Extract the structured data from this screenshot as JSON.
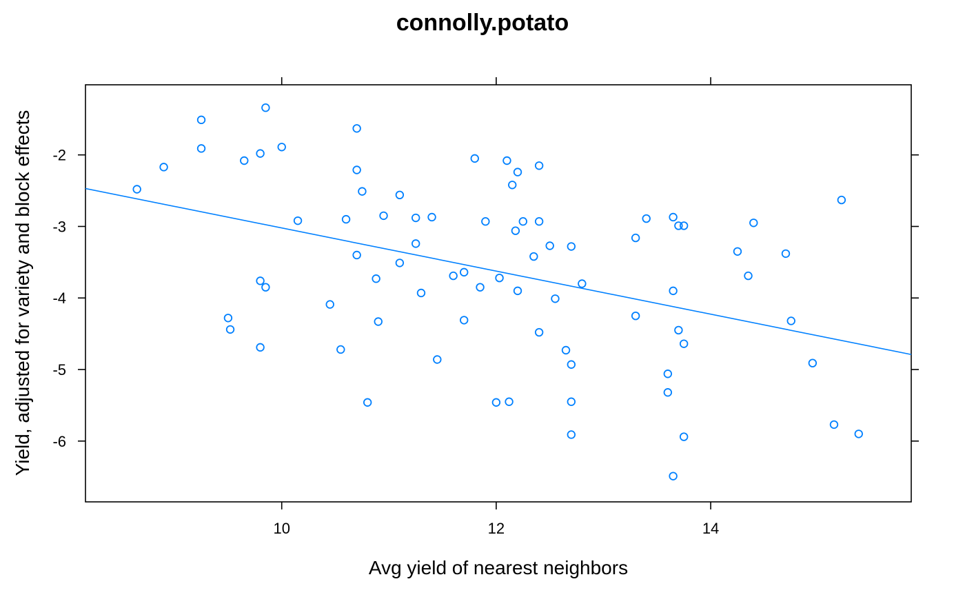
{
  "chart_data": {
    "type": "scatter",
    "title": "connolly.potato",
    "xlabel": "Avg yield of nearest neighbors",
    "ylabel": "Yield, adjusted for variety and block effects",
    "xlim": [
      8.17,
      15.87
    ],
    "ylim": [
      -6.85,
      -1.02
    ],
    "xticks": [
      10,
      12,
      14
    ],
    "yticks": [
      -6,
      -5,
      -4,
      -3,
      -2
    ],
    "grid": false,
    "legend": "none",
    "colors": {
      "points": "#0080ff",
      "fit_line": "#0080ff",
      "frame": "#000000"
    },
    "fit_line": {
      "x": [
        8.17,
        15.87
      ],
      "y": [
        -2.47,
        -4.79
      ]
    },
    "x": [
      8.65,
      8.9,
      9.25,
      9.25,
      9.5,
      9.52,
      9.65,
      9.8,
      9.8,
      9.8,
      9.85,
      9.85,
      10.0,
      10.15,
      10.45,
      10.55,
      10.6,
      10.7,
      10.7,
      10.7,
      10.75,
      10.8,
      10.88,
      10.9,
      10.95,
      11.1,
      11.1,
      11.25,
      11.25,
      11.3,
      11.4,
      11.45,
      11.6,
      11.7,
      11.7,
      11.8,
      11.85,
      11.9,
      12.0,
      12.03,
      12.1,
      12.12,
      12.15,
      12.18,
      12.2,
      12.2,
      12.25,
      12.35,
      12.4,
      12.4,
      12.4,
      12.5,
      12.55,
      12.65,
      12.7,
      12.7,
      12.7,
      12.7,
      12.8,
      13.3,
      13.3,
      13.4,
      13.6,
      13.6,
      13.65,
      13.65,
      13.65,
      13.7,
      13.7,
      13.75,
      13.75,
      13.75,
      14.25,
      14.35,
      14.4,
      14.7,
      14.75,
      14.95,
      15.15,
      15.22,
      15.38
    ],
    "y": [
      -2.48,
      -2.17,
      -1.51,
      -1.91,
      -4.28,
      -4.44,
      -2.08,
      -1.98,
      -3.76,
      -4.69,
      -1.34,
      -3.85,
      -1.89,
      -2.92,
      -4.09,
      -4.72,
      -2.9,
      -1.63,
      -2.21,
      -3.4,
      -2.51,
      -5.46,
      -3.73,
      -4.33,
      -2.85,
      -2.56,
      -3.51,
      -2.88,
      -3.24,
      -3.93,
      -2.87,
      -4.86,
      -3.69,
      -3.64,
      -4.31,
      -2.05,
      -3.85,
      -2.93,
      -5.46,
      -3.72,
      -2.08,
      -5.45,
      -2.42,
      -3.06,
      -2.24,
      -3.9,
      -2.93,
      -3.42,
      -2.15,
      -2.93,
      -4.48,
      -3.27,
      -4.01,
      -4.73,
      -3.28,
      -4.93,
      -5.45,
      -5.91,
      -3.8,
      -3.16,
      -4.25,
      -2.89,
      -5.06,
      -5.32,
      -2.87,
      -3.9,
      -6.49,
      -2.99,
      -4.45,
      -4.64,
      -5.94,
      -2.99,
      -3.35,
      -3.69,
      -2.95,
      -3.38,
      -4.32,
      -4.91,
      -5.77,
      -2.63,
      -5.9
    ]
  }
}
